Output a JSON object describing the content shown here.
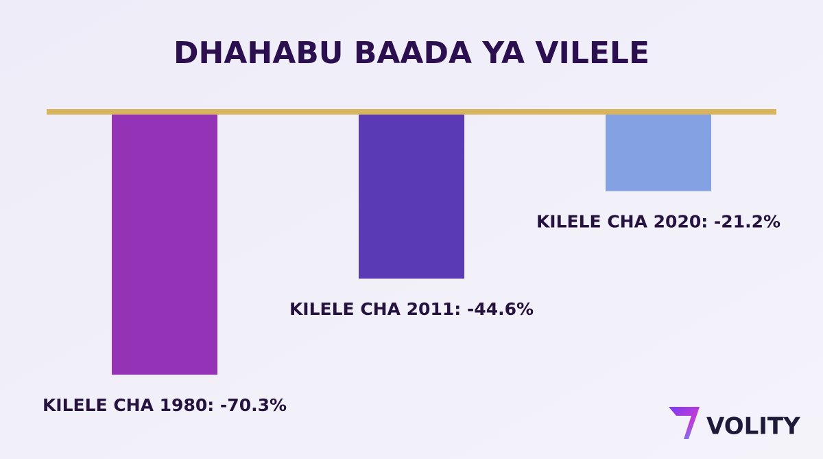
{
  "chart_data": {
    "type": "bar",
    "title": "DHAHABU BAADA YA VILELE",
    "values": [
      -70.3,
      -44.6,
      -21.2
    ],
    "value_labels": [
      "KILELE CHA 1980: -70.3%",
      "KILELE CHA 2011: -44.6%",
      "KILELE CHA 2020: -21.2%"
    ],
    "colors": [
      "#9433b5",
      "#5b3bb5",
      "#84a1e4"
    ],
    "baseline_color": "#d8b45c"
  },
  "logo": "VOLITY"
}
